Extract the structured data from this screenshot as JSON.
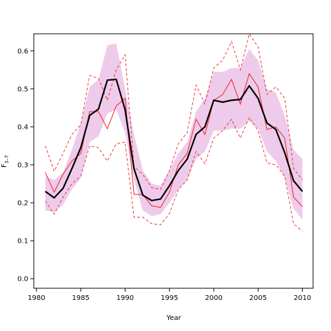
{
  "chart_data": {
    "type": "line",
    "title": "",
    "xlabel": "Year",
    "ylabel_main": "F",
    "ylabel_sub": "3–7",
    "xlim": [
      1979.7,
      2011.2
    ],
    "ylim": [
      -0.025,
      0.645
    ],
    "x_ticks": [
      1980,
      1985,
      1990,
      1995,
      2000,
      2005,
      2010
    ],
    "y_ticks": [
      0.0,
      0.1,
      0.2,
      0.3,
      0.4,
      0.5,
      0.6
    ],
    "y_tick_labels": [
      "0.0",
      "0.1",
      "0.2",
      "0.3",
      "0.4",
      "0.5",
      "0.6"
    ],
    "grid": false,
    "colors": {
      "band": "#eecbeb",
      "main": "#000000",
      "red": "#ee2020"
    },
    "x": [
      1981,
      1982,
      1983,
      1984,
      1985,
      1986,
      1987,
      1988,
      1989,
      1990,
      1991,
      1992,
      1993,
      1994,
      1995,
      1996,
      1997,
      1998,
      1999,
      2000,
      2001,
      2002,
      2003,
      2004,
      2005,
      2006,
      2007,
      2008,
      2009,
      2010
    ],
    "series": [
      {
        "role": "band_upper",
        "values": [
          0.27,
          0.26,
          0.28,
          0.34,
          0.41,
          0.505,
          0.525,
          0.615,
          0.62,
          0.5,
          0.38,
          0.285,
          0.25,
          0.245,
          0.285,
          0.33,
          0.36,
          0.44,
          0.475,
          0.545,
          0.545,
          0.555,
          0.555,
          0.605,
          0.575,
          0.5,
          0.49,
          0.43,
          0.34,
          0.315
        ]
      },
      {
        "role": "band_lower",
        "values": [
          0.18,
          0.175,
          0.195,
          0.235,
          0.265,
          0.36,
          0.375,
          0.435,
          0.445,
          0.385,
          0.26,
          0.18,
          0.165,
          0.17,
          0.2,
          0.235,
          0.26,
          0.315,
          0.335,
          0.39,
          0.39,
          0.395,
          0.395,
          0.415,
          0.395,
          0.335,
          0.31,
          0.265,
          0.185,
          0.155
        ]
      },
      {
        "role": "mean",
        "values": [
          0.23,
          0.213,
          0.238,
          0.29,
          0.345,
          0.43,
          0.447,
          0.523,
          0.525,
          0.445,
          0.29,
          0.22,
          0.206,
          0.21,
          0.245,
          0.285,
          0.315,
          0.38,
          0.4,
          0.47,
          0.465,
          0.47,
          0.472,
          0.508,
          0.475,
          0.41,
          0.393,
          0.332,
          0.258,
          0.23
        ]
      },
      {
        "role": "red_solid",
        "values": [
          0.28,
          0.228,
          0.275,
          0.31,
          0.33,
          0.44,
          0.44,
          0.395,
          0.455,
          0.475,
          0.222,
          0.222,
          0.192,
          0.188,
          0.228,
          0.3,
          0.33,
          0.42,
          0.38,
          0.47,
          0.485,
          0.525,
          0.46,
          0.54,
          0.505,
          0.393,
          0.4,
          0.37,
          0.215,
          0.19
        ]
      },
      {
        "role": "red_dashed_upper",
        "values": [
          0.35,
          0.283,
          0.33,
          0.38,
          0.405,
          0.535,
          0.528,
          0.47,
          0.55,
          0.59,
          0.295,
          0.275,
          0.24,
          0.235,
          0.285,
          0.355,
          0.385,
          0.51,
          0.46,
          0.555,
          0.575,
          0.625,
          0.55,
          0.645,
          0.61,
          0.485,
          0.505,
          0.475,
          0.29,
          0.26
        ]
      },
      {
        "role": "red_dashed_lower",
        "values": [
          0.205,
          0.17,
          0.215,
          0.25,
          0.27,
          0.35,
          0.345,
          0.31,
          0.355,
          0.36,
          0.162,
          0.162,
          0.145,
          0.142,
          0.172,
          0.235,
          0.26,
          0.335,
          0.303,
          0.37,
          0.39,
          0.42,
          0.37,
          0.425,
          0.39,
          0.305,
          0.3,
          0.27,
          0.145,
          0.125
        ]
      }
    ]
  }
}
